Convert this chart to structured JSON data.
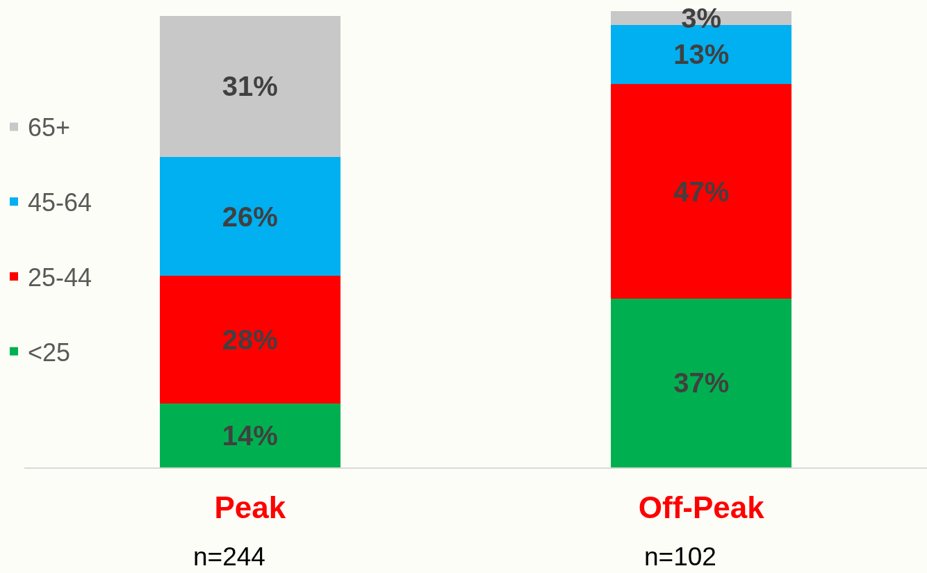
{
  "chart_data": {
    "type": "bar",
    "stacked": true,
    "categories": [
      "Peak",
      "Off-Peak"
    ],
    "series": [
      {
        "name": "<25",
        "color": "#00b050",
        "values": [
          14,
          37
        ],
        "value_labels": [
          "14%",
          "37%"
        ]
      },
      {
        "name": "25-44",
        "color": "#ff0000",
        "values": [
          28,
          47
        ],
        "value_labels": [
          "28%",
          "47%"
        ]
      },
      {
        "name": "45-64",
        "color": "#00b0f0",
        "values": [
          26,
          13
        ],
        "value_labels": [
          "26%",
          "13%"
        ]
      },
      {
        "name": "65+",
        "color": "#c8c8c8",
        "values": [
          31,
          3
        ],
        "value_labels": [
          "31%",
          "3%"
        ]
      }
    ],
    "tick_labels": "x",
    "legend": "left",
    "annotations": [
      "n=244",
      "n=102"
    ]
  }
}
